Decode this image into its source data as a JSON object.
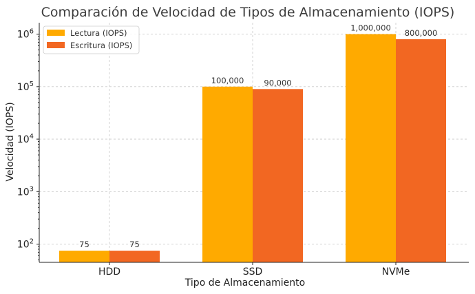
{
  "chart_data": {
    "type": "bar",
    "title": "Comparación de Velocidad de Tipos de Almacenamiento (IOPS)",
    "xlabel": "Tipo de Almacenamiento",
    "ylabel": "Velocidad (IOPS)",
    "yscale": "log",
    "ylim": [
      45,
      1650000
    ],
    "yticks": [
      100,
      1000,
      10000,
      100000,
      1000000
    ],
    "ytick_labels": [
      {
        "base": "10",
        "exp": "2"
      },
      {
        "base": "10",
        "exp": "3"
      },
      {
        "base": "10",
        "exp": "4"
      },
      {
        "base": "10",
        "exp": "5"
      },
      {
        "base": "10",
        "exp": "6"
      }
    ],
    "categories": [
      "HDD",
      "SSD",
      "NVMe"
    ],
    "series": [
      {
        "name": "Lectura (IOPS)",
        "color": "#FFAA00",
        "values": [
          75,
          100000,
          1000000
        ],
        "labels": [
          "75",
          "100,000",
          "1,000,000"
        ]
      },
      {
        "name": "Escritura (IOPS)",
        "color": "#F26722",
        "values": [
          75,
          90000,
          800000
        ],
        "labels": [
          "75",
          "90,000",
          "800,000"
        ]
      }
    ],
    "grid": true,
    "legend_position": "top-left"
  }
}
